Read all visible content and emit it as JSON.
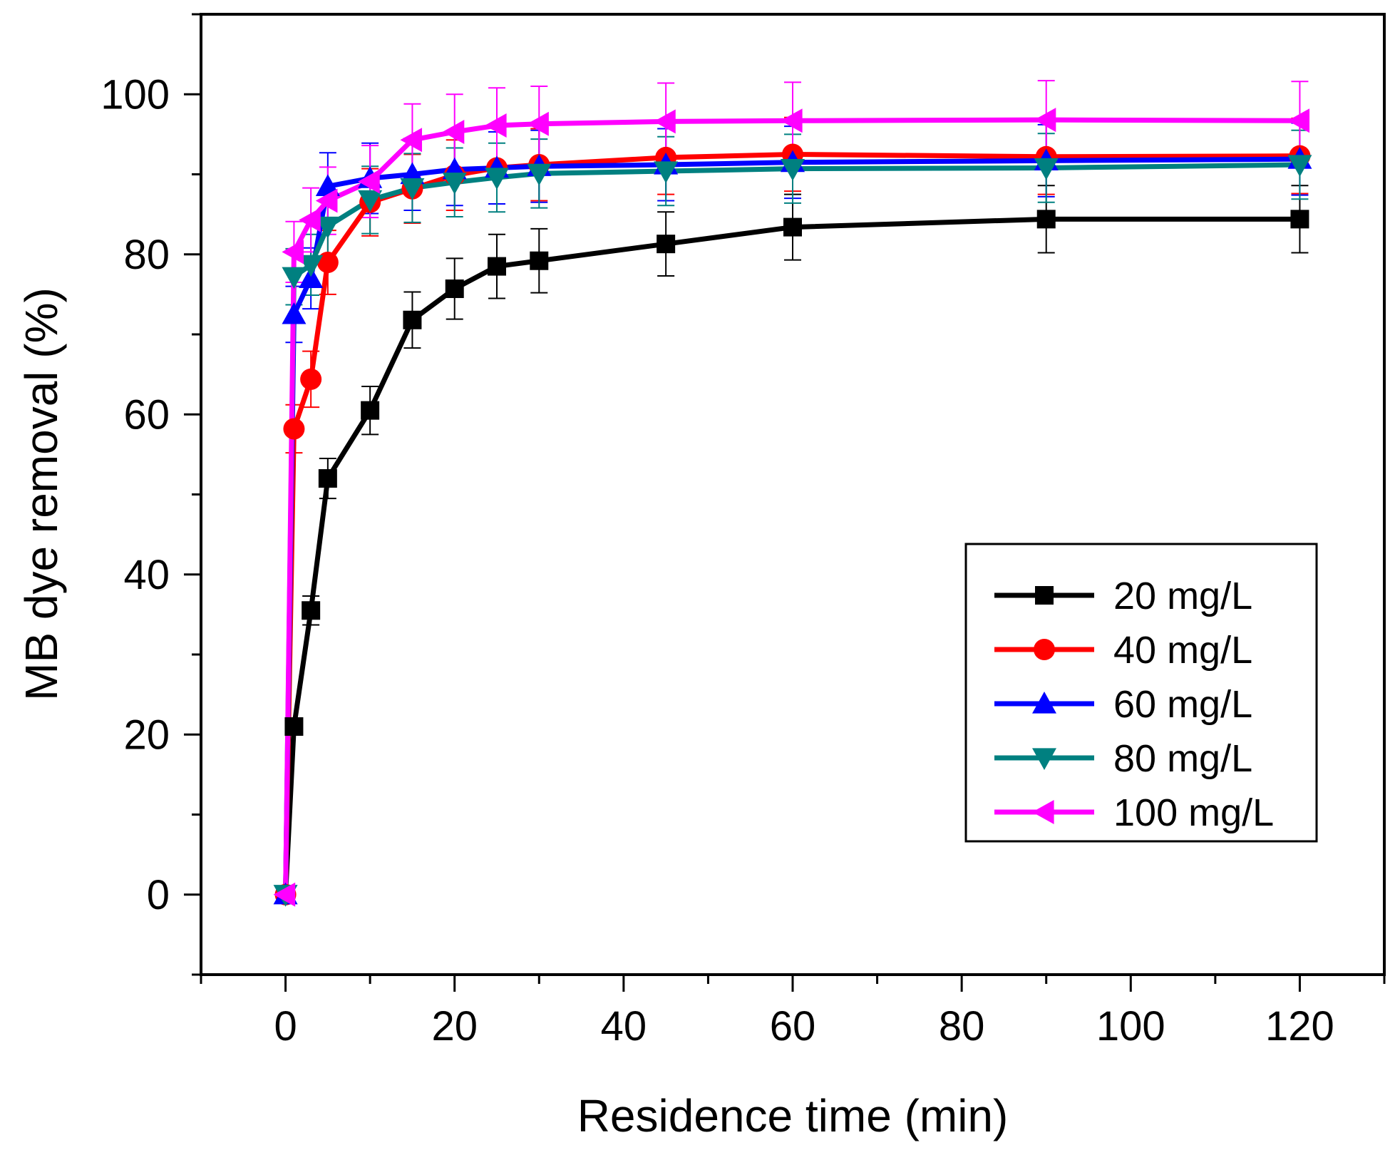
{
  "chart_data": {
    "type": "line",
    "xlabel": "Residence time (min)",
    "ylabel": "MB dye removal (%)",
    "xlim": [
      -10,
      130
    ],
    "ylim": [
      -10,
      110
    ],
    "x_ticks": [
      0,
      20,
      40,
      60,
      80,
      100,
      120
    ],
    "x_tick_labels": [
      "0",
      "20",
      "40",
      "60",
      "80",
      "100",
      "120"
    ],
    "y_ticks": [
      0,
      20,
      40,
      60,
      80,
      100
    ],
    "y_tick_labels": [
      "0",
      "20",
      "40",
      "60",
      "80",
      "100"
    ],
    "x_minor_ticks": [
      -10,
      10,
      30,
      50,
      70,
      90,
      110,
      130
    ],
    "y_minor_ticks": [
      -10,
      10,
      30,
      50,
      70,
      90,
      110
    ],
    "grid": false,
    "legend_position": "bottom-right",
    "x": [
      0,
      1,
      3,
      5,
      10,
      15,
      20,
      25,
      30,
      45,
      60,
      90,
      120
    ],
    "series": [
      {
        "name": "20 mg/L",
        "color": "#000000",
        "marker": "square",
        "values": [
          0,
          21,
          35.5,
          52,
          60.5,
          71.8,
          75.7,
          78.5,
          79.2,
          81.3,
          83.4,
          84.4,
          84.4
        ],
        "error": [
          0,
          0,
          1.8,
          2.5,
          3.0,
          3.5,
          3.8,
          4.0,
          4.0,
          4.0,
          4.1,
          4.2,
          4.2
        ]
      },
      {
        "name": "40 mg/L",
        "color": "#ff0000",
        "marker": "circle",
        "values": [
          0,
          58.2,
          64.4,
          79,
          86.5,
          88.2,
          89.9,
          90.8,
          91.2,
          92.1,
          92.5,
          92.2,
          92.3
        ],
        "error": [
          0,
          3.0,
          3.5,
          4.0,
          4.2,
          4.3,
          4.4,
          4.5,
          4.5,
          4.6,
          4.6,
          4.7,
          4.7
        ]
      },
      {
        "name": "60 mg/L",
        "color": "#0000ff",
        "marker": "triangle-up",
        "values": [
          0,
          72.5,
          77,
          88.5,
          89.5,
          90.0,
          90.6,
          90.8,
          91.0,
          91.2,
          91.5,
          91.7,
          91.9
        ],
        "error": [
          0,
          3.5,
          3.8,
          4.2,
          4.4,
          4.5,
          4.5,
          4.5,
          4.5,
          4.5,
          4.5,
          4.5,
          4.5
        ]
      },
      {
        "name": "80 mg/L",
        "color": "#008080",
        "marker": "triangle-down",
        "values": [
          0,
          77.2,
          78.7,
          83.5,
          86.8,
          88.3,
          89.0,
          89.6,
          90.1,
          90.4,
          90.7,
          90.8,
          91.2
        ],
        "error": [
          0,
          3.5,
          3.8,
          4.0,
          4.2,
          4.3,
          4.3,
          4.3,
          4.3,
          4.3,
          4.3,
          4.3,
          4.3
        ]
      },
      {
        "name": "100 mg/L",
        "color": "#ff00ff",
        "marker": "triangle-left",
        "values": [
          0,
          80.3,
          84.3,
          86.7,
          89.1,
          94.3,
          95.3,
          96.1,
          96.3,
          96.6,
          96.7,
          96.8,
          96.7
        ],
        "error": [
          0,
          3.8,
          4.0,
          4.2,
          4.5,
          4.5,
          4.7,
          4.7,
          4.7,
          4.8,
          4.8,
          4.9,
          4.9
        ]
      }
    ]
  }
}
